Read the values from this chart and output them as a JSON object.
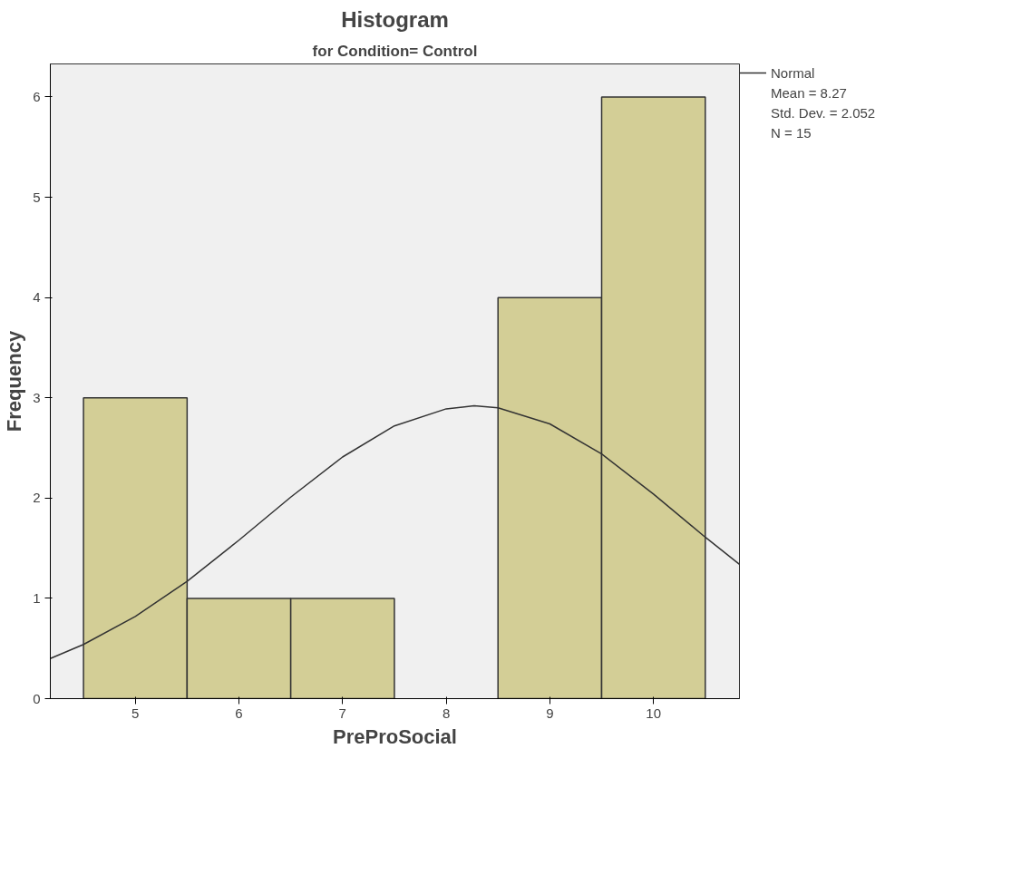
{
  "chart_data": {
    "type": "histogram",
    "title": "Histogram",
    "subtitle": "for Condition= Control",
    "xlabel": "PreProSocial",
    "ylabel": "Frequency",
    "bins": [
      4.5,
      5.5,
      6.5,
      7.5,
      8.5,
      9.5,
      10.5
    ],
    "values": [
      3,
      1,
      1,
      0,
      4,
      6
    ],
    "color": "#d3ce96",
    "series": [
      {
        "type": "line",
        "name": "Normal",
        "color": "#333333",
        "x": [
          4.18,
          4.5,
          5,
          5.5,
          6,
          6.5,
          7,
          7.5,
          8,
          8.27,
          8.5,
          9,
          9.5,
          10,
          10.5,
          10.83
        ],
        "values": [
          0.4,
          0.54,
          0.82,
          1.17,
          1.58,
          2.01,
          2.41,
          2.72,
          2.89,
          2.92,
          2.9,
          2.74,
          2.44,
          2.04,
          1.61,
          1.34
        ]
      }
    ],
    "xlim": [
      4.18,
      10.83
    ],
    "ylim": [
      0,
      6.33
    ],
    "xticks": [
      5,
      6,
      7,
      8,
      9,
      10
    ],
    "yticks": [
      0,
      1,
      2,
      3,
      4,
      5,
      6
    ],
    "annotations": [
      "Mean = 8.27",
      "Std. Dev. = 2.052",
      "N = 15"
    ],
    "legend": "top right",
    "grid": false
  }
}
